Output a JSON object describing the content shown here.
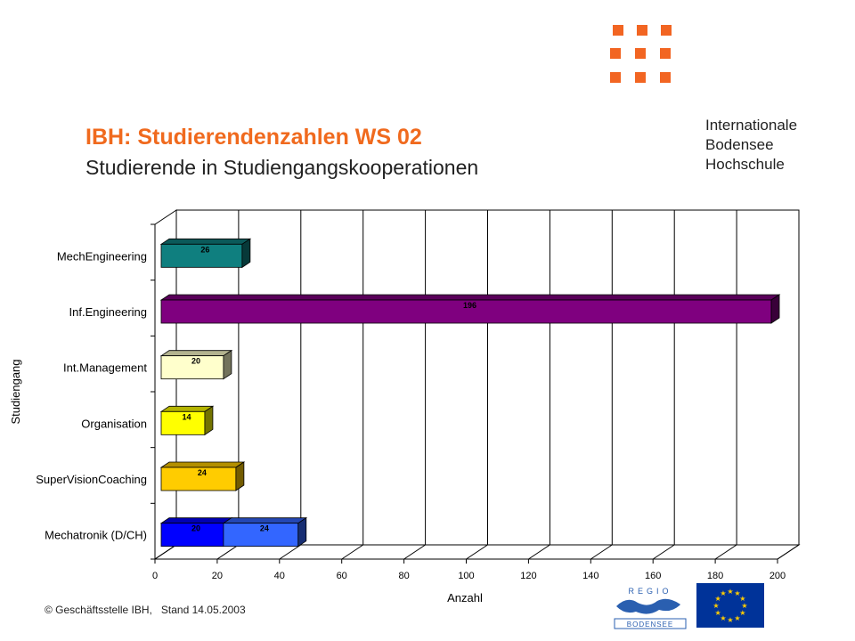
{
  "header": {
    "title": "IBH: Studierendenzahlen WS 02",
    "subtitle": "Studierende in Studiengangskooperationen"
  },
  "logo": {
    "lines": [
      "Internationale",
      "Bodensee",
      "Hochschule"
    ],
    "color": "#f26522"
  },
  "footer": {
    "copyright": "© Geschäftsstelle IBH,",
    "date": "Stand 14.05.2003"
  },
  "regio_logo": {
    "letters_top": "REGIO",
    "letters_bottom": "BODENSEE"
  },
  "chart_data": {
    "type": "bar",
    "orientation": "horizontal",
    "style": "3d-stacked",
    "xlabel": "Anzahl",
    "ylabel": "Studiengang",
    "xlim": [
      0,
      200
    ],
    "xticks": [
      0,
      20,
      40,
      60,
      80,
      100,
      120,
      140,
      160,
      180,
      200
    ],
    "grid": true,
    "categories": [
      "MechEngineering",
      "Inf.Engineering",
      "Int.Management",
      "Organisation",
      "SuperVisionCoaching",
      "Mechatronik (D/CH)"
    ],
    "segments": [
      [
        {
          "value": 26,
          "color": "#0f7f7f"
        }
      ],
      [
        {
          "value": 196,
          "color": "#7f007f"
        }
      ],
      [
        {
          "value": 20,
          "color": "#ffffcc"
        }
      ],
      [
        {
          "value": 14,
          "color": "#ffff00"
        }
      ],
      [
        {
          "value": 24,
          "color": "#ffcc00"
        }
      ],
      [
        {
          "value": 20,
          "color": "#0000ff"
        },
        {
          "value": 24,
          "color": "#3366ff"
        }
      ]
    ]
  }
}
